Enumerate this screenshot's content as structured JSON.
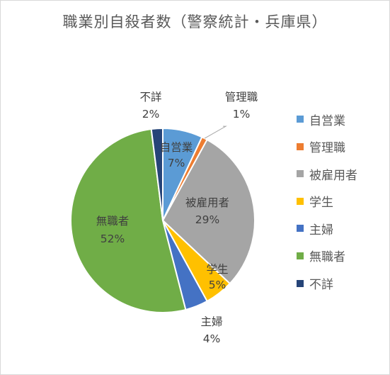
{
  "chart_data": {
    "type": "pie",
    "title": "職業別自殺者数（警察統計・兵庫県）",
    "categories": [
      "自営業",
      "管理職",
      "被雇用者",
      "学生",
      "主婦",
      "無職者",
      "不詳"
    ],
    "values": [
      7,
      1,
      29,
      5,
      4,
      52,
      2
    ],
    "value_labels": [
      "7%",
      "1%",
      "29%",
      "5%",
      "4%",
      "52%",
      "2%"
    ],
    "colors": [
      "#5b9bd5",
      "#ed7d31",
      "#a5a5a5",
      "#ffc000",
      "#4472c4",
      "#70ad47",
      "#264478"
    ],
    "legend_position": "right"
  }
}
